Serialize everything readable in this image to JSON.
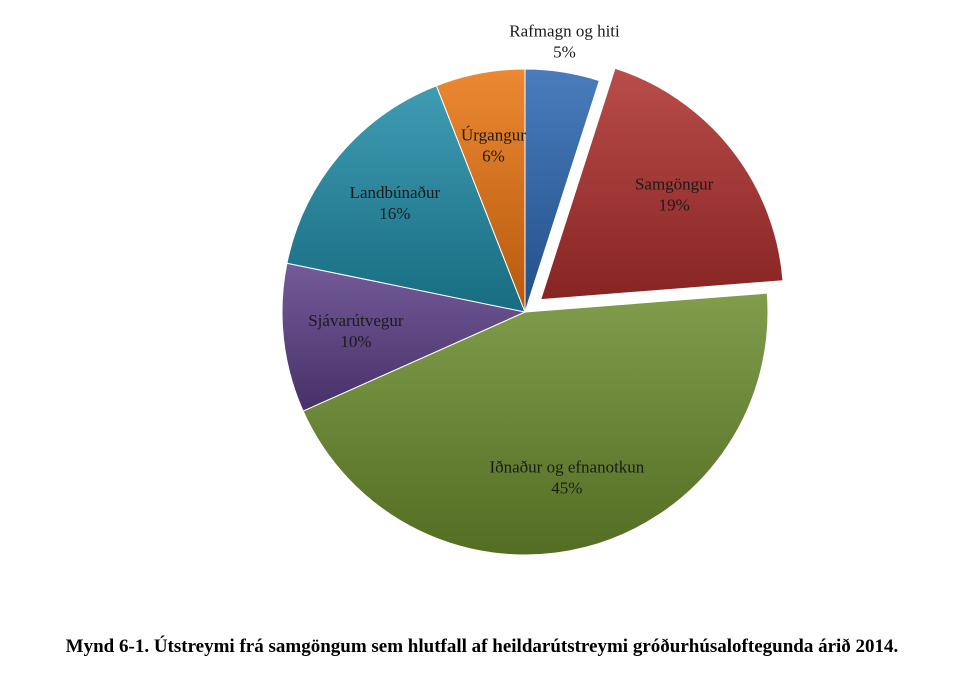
{
  "chart_data": {
    "type": "pie",
    "title": "",
    "start_angle_deg": 0,
    "direction": "clockwise",
    "exploded": [
      "Samgöngur"
    ],
    "legend": "none",
    "slices": [
      {
        "name": "Rafmagn og hiti",
        "value": 5,
        "label": "5%",
        "color": "#2a65b0",
        "label_placement": "outside"
      },
      {
        "name": "Samgöngur",
        "value": 19,
        "label": "19%",
        "color": "#ad2e2b",
        "label_placement": "inside"
      },
      {
        "name": "Iðnaður og efnanotkun",
        "value": 45,
        "label": "45%",
        "color": "#6a8c2c",
        "label_placement": "inside"
      },
      {
        "name": "Sjávarútvegur",
        "value": 10,
        "label": "10%",
        "color": "#5b3e87",
        "label_placement": "inside"
      },
      {
        "name": "Landbúnaður",
        "value": 16,
        "label": "16%",
        "color": "#1e8aa6",
        "label_placement": "inside"
      },
      {
        "name": "Úrgangur",
        "value": 6,
        "label": "6%",
        "color": "#e9730f",
        "label_placement": "inside"
      }
    ]
  },
  "caption": "Mynd 6-1. Útstreymi frá samgöngum sem hlutfall af heildarútstreymi gróðurhúsaloftegunda árið 2014."
}
